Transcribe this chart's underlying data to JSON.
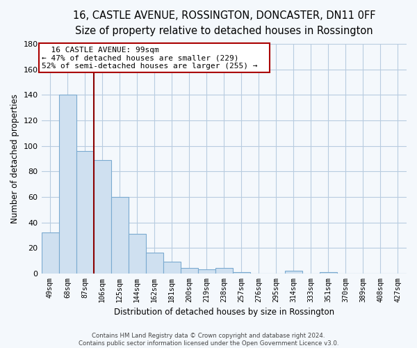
{
  "title": "16, CASTLE AVENUE, ROSSINGTON, DONCASTER, DN11 0FF",
  "subtitle": "Size of property relative to detached houses in Rossington",
  "xlabel": "Distribution of detached houses by size in Rossington",
  "ylabel": "Number of detached properties",
  "bar_values": [
    32,
    140,
    96,
    89,
    60,
    31,
    16,
    9,
    4,
    3,
    4,
    1,
    0,
    0,
    2,
    0,
    1,
    0,
    0,
    0,
    0
  ],
  "bar_color": "#cfe0f0",
  "bar_edge_color": "#7aaad0",
  "vline_color": "#8b0000",
  "ylim": [
    0,
    180
  ],
  "yticks": [
    0,
    20,
    40,
    60,
    80,
    100,
    120,
    140,
    160,
    180
  ],
  "annotation_title": "16 CASTLE AVENUE: 99sqm",
  "annotation_line1": "← 47% of detached houses are smaller (229)",
  "annotation_line2": "52% of semi-detached houses are larger (255) →",
  "annotation_box_color": "#ffffff",
  "annotation_border_color": "#aa0000",
  "footer_line1": "Contains HM Land Registry data © Crown copyright and database right 2024.",
  "footer_line2": "Contains public sector information licensed under the Open Government Licence v3.0.",
  "background_color": "#f4f8fc",
  "grid_color": "#b8cce0",
  "title_fontsize": 10.5,
  "subtitle_fontsize": 9,
  "all_labels": [
    "49sqm",
    "68sqm",
    "87sqm",
    "106sqm",
    "125sqm",
    "144sqm",
    "162sqm",
    "181sqm",
    "200sqm",
    "219sqm",
    "238sqm",
    "257sqm",
    "276sqm",
    "295sqm",
    "314sqm",
    "333sqm",
    "351sqm",
    "370sqm",
    "389sqm",
    "408sqm",
    "427sqm"
  ],
  "num_bars": 21,
  "vline_pos": 2.5
}
